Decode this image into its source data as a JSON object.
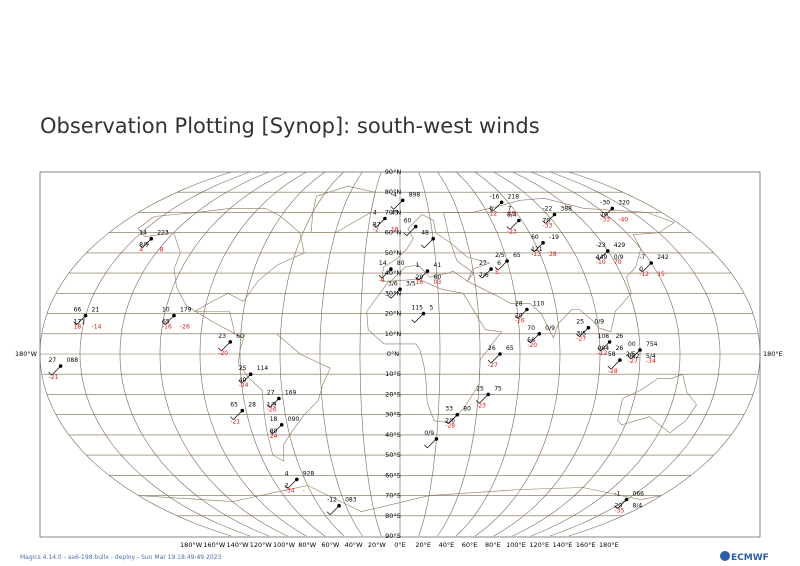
{
  "title": "Observation Plotting [Synop]: south-west winds",
  "footer": "Magics 4.14.0 - aa6-198.bullx - deploy - Sun Mar 19 18:49:49 2023",
  "logo": "ECMWF",
  "colors": {
    "grid": "#7a6a4f",
    "coast": "#8a7a5a",
    "black": "#000000",
    "red": "#e01818"
  },
  "map": {
    "projection": "Robinson-like world",
    "lat_labels": [
      "90°N",
      "80°N",
      "70°N",
      "60°N",
      "50°N",
      "40°N",
      "30°N",
      "20°N",
      "10°N",
      "0°N",
      "10°S",
      "20°S",
      "30°S",
      "40°S",
      "50°S",
      "60°S",
      "70°S",
      "80°S",
      "90°S"
    ],
    "lon_labels": [
      "180°W",
      "160°W",
      "140°W",
      "120°W",
      "100°W",
      "80°W",
      "60°W",
      "40°W",
      "20°W",
      "0°E",
      "20°E",
      "40°E",
      "60°E",
      "80°E",
      "100°E",
      "120°E",
      "140°E",
      "160°E",
      "180°E"
    ],
    "edge_left": "180°W",
    "edge_right": "180°E"
  },
  "observations": [
    {
      "lon": 2,
      "lat": 76,
      "black": [
        "-4",
        "898"
      ],
      "red": []
    },
    {
      "lon": -10,
      "lat": 67,
      "black": [
        "4",
        "43",
        "87"
      ],
      "red": [
        "-2",
        "18"
      ]
    },
    {
      "lon": 10,
      "lat": 63,
      "black": [
        "60"
      ],
      "red": []
    },
    {
      "lon": 20,
      "lat": 57,
      "black": [
        "48"
      ],
      "red": []
    },
    {
      "lon": -5,
      "lat": 42,
      "black": [
        "14",
        "80"
      ],
      "red": [
        "-4"
      ]
    },
    {
      "lon": 15,
      "lat": 41,
      "black": [
        "1",
        "41",
        "29",
        "60"
      ],
      "red": [
        "16",
        "03"
      ]
    },
    {
      "lon": 0,
      "lat": 32,
      "black": [
        "3/6",
        "3/5"
      ],
      "red": []
    },
    {
      "lon": 50,
      "lat": 42,
      "black": [
        "27",
        "6",
        "7/6"
      ],
      "red": []
    },
    {
      "lon": 60,
      "lat": 46,
      "black": [
        "2/5",
        "65"
      ],
      "red": [
        "5"
      ]
    },
    {
      "lon": 75,
      "lat": 75,
      "black": [
        "-16",
        "218",
        "5",
        "7"
      ],
      "red": [
        "12",
        "33"
      ]
    },
    {
      "lon": 78,
      "lat": 66,
      "black": [
        "8/4"
      ],
      "red": [
        "-23"
      ]
    },
    {
      "lon": 105,
      "lat": 69,
      "black": [
        "-22",
        "388",
        "70"
      ],
      "red": [
        "-33"
      ]
    },
    {
      "lon": 85,
      "lat": 55,
      "black": [
        "60",
        "-19",
        "121"
      ],
      "red": [
        "-13",
        "28"
      ]
    },
    {
      "lon": 120,
      "lat": 51,
      "black": [
        "-23",
        "429",
        "449",
        "0/9"
      ],
      "red": [
        "-10",
        "70"
      ]
    },
    {
      "lon": 150,
      "lat": 72,
      "black": [
        "-30",
        "320",
        "70"
      ],
      "red": [
        "-33",
        "-40"
      ]
    },
    {
      "lon": 140,
      "lat": 45,
      "black": [
        "-7",
        "242",
        "0"
      ],
      "red": [
        "-12",
        "15"
      ]
    },
    {
      "lon": -150,
      "lat": 57,
      "black": [
        "14",
        "223",
        "8/9"
      ],
      "red": [
        "4",
        "-8"
      ]
    },
    {
      "lon": -160,
      "lat": 19,
      "black": [
        "66",
        "21",
        "171"
      ],
      "red": [
        "18",
        "-14"
      ]
    },
    {
      "lon": -115,
      "lat": 19,
      "black": [
        "10",
        "179",
        "65"
      ],
      "red": [
        "-16",
        "-26"
      ]
    },
    {
      "lon": -85,
      "lat": 6,
      "black": [
        "23",
        "60"
      ],
      "red": [
        "-20"
      ]
    },
    {
      "lon": -170,
      "lat": -6,
      "black": [
        "27",
        "088"
      ],
      "red": [
        "-21"
      ]
    },
    {
      "lon": -75,
      "lat": -10,
      "black": [
        "25",
        "114",
        "40"
      ],
      "red": [
        "-24"
      ]
    },
    {
      "lon": -62,
      "lat": -22,
      "black": [
        "27",
        "169",
        "1/9"
      ],
      "red": [
        "-26"
      ]
    },
    {
      "lon": -82,
      "lat": -28,
      "black": [
        "65",
        "28"
      ],
      "red": [
        "-21"
      ]
    },
    {
      "lon": -63,
      "lat": -35,
      "black": [
        "18",
        "090",
        "80"
      ],
      "red": [
        "24"
      ]
    },
    {
      "lon": -65,
      "lat": -62,
      "black": [
        "4",
        "928",
        "2"
      ],
      "red": [
        "-34",
        "-"
      ]
    },
    {
      "lon": -45,
      "lat": -75,
      "black": [
        "-12",
        "083"
      ],
      "red": []
    },
    {
      "lon": 12,
      "lat": 20,
      "black": [
        "115",
        "5"
      ],
      "red": []
    },
    {
      "lon": 50,
      "lat": 0,
      "black": [
        "26",
        "65"
      ],
      "red": [
        "-27"
      ]
    },
    {
      "lon": 45,
      "lat": -20,
      "black": [
        "25",
        "75"
      ],
      "red": [
        "-23"
      ]
    },
    {
      "lon": 30,
      "lat": -30,
      "black": [
        "33",
        "80",
        "2/6"
      ],
      "red": [
        "-28"
      ]
    },
    {
      "lon": 20,
      "lat": -42,
      "black": [
        "0/9"
      ],
      "red": []
    },
    {
      "lon": 65,
      "lat": 22,
      "black": [
        "28",
        "110",
        "20"
      ],
      "red": [
        "-26"
      ]
    },
    {
      "lon": 70,
      "lat": 10,
      "black": [
        "70",
        "0/9",
        "56"
      ],
      "red": [
        "-20"
      ]
    },
    {
      "lon": 95,
      "lat": 13,
      "black": [
        "25",
        "0/9",
        "3/5"
      ],
      "red": [
        "-27"
      ]
    },
    {
      "lon": 105,
      "lat": 6,
      "black": [
        "108",
        "26",
        "084",
        "26"
      ],
      "red": [
        "-12"
      ]
    },
    {
      "lon": 110,
      "lat": -3,
      "black": [
        "58",
        "2/5"
      ],
      "red": [
        "-28"
      ]
    },
    {
      "lon": 120,
      "lat": 2,
      "black": [
        "00",
        "754",
        "082",
        "5/4"
      ],
      "red": [
        "-27",
        "-34"
      ]
    },
    {
      "lon": 160,
      "lat": -72,
      "black": [
        "-1",
        "066",
        "20",
        "8/4"
      ],
      "red": [
        "-35"
      ]
    }
  ]
}
